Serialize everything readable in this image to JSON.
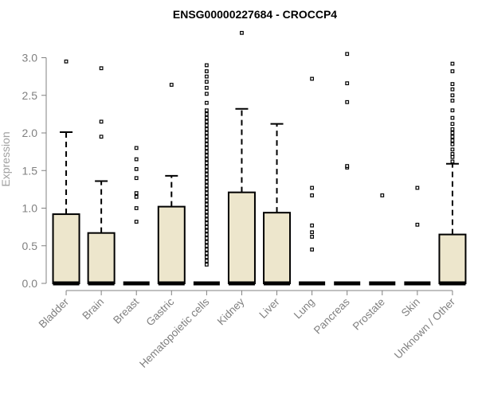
{
  "chart_data": {
    "type": "box",
    "title": "ENSG00000227684 - CROCCP4",
    "ylabel": "Expression",
    "xlabel": "",
    "ylim": [
      0,
      3.3
    ],
    "yticks": [
      "0.0",
      "0.5",
      "1.0",
      "1.5",
      "2.0",
      "2.5",
      "3.0"
    ],
    "grid": false,
    "colors": {
      "box_fill": "#ede6cc",
      "stroke": "#000000",
      "axis": "#808080"
    },
    "categories": [
      "Bladder",
      "Brain",
      "Breast",
      "Gastric",
      "Hematopoietic cells",
      "Kidney",
      "Liver",
      "Lung",
      "Pancreas",
      "Prostate",
      "Skin",
      "Unknown / Other"
    ],
    "boxes": [
      {
        "q1": 0,
        "median": 0,
        "q3": 0.92,
        "whisker_low": 0,
        "whisker_high": 2.01,
        "outliers": [
          2.95
        ]
      },
      {
        "q1": 0,
        "median": 0,
        "q3": 0.67,
        "whisker_low": 0,
        "whisker_high": 1.36,
        "outliers": [
          1.95,
          2.15,
          2.86
        ]
      },
      {
        "q1": 0,
        "median": 0,
        "q3": 0,
        "whisker_low": 0,
        "whisker_high": 0,
        "outliers": [
          0.82,
          1.0,
          1.15,
          1.2,
          1.4,
          1.52,
          1.65,
          1.8
        ]
      },
      {
        "q1": 0,
        "median": 0,
        "q3": 1.02,
        "whisker_low": 0,
        "whisker_high": 1.43,
        "outliers": [
          2.64
        ]
      },
      {
        "q1": 0,
        "median": 0,
        "q3": 0,
        "whisker_low": 0,
        "whisker_high": 0,
        "outliers": [
          0.25,
          0.3,
          0.35,
          0.4,
          0.45,
          0.5,
          0.55,
          0.6,
          0.65,
          0.7,
          0.75,
          0.8,
          0.85,
          0.9,
          0.95,
          1.0,
          1.05,
          1.1,
          1.15,
          1.2,
          1.25,
          1.3,
          1.35,
          1.4,
          1.45,
          1.5,
          1.55,
          1.6,
          1.65,
          1.7,
          1.75,
          1.8,
          1.85,
          1.9,
          1.95,
          2.0,
          2.05,
          2.1,
          2.15,
          2.2,
          2.25,
          2.3,
          2.4,
          2.52,
          2.6,
          2.68,
          2.75,
          2.82,
          2.9
        ]
      },
      {
        "q1": 0,
        "median": 0,
        "q3": 1.21,
        "whisker_low": 0,
        "whisker_high": 2.32,
        "outliers": [
          3.33
        ]
      },
      {
        "q1": 0,
        "median": 0,
        "q3": 0.94,
        "whisker_low": 0,
        "whisker_high": 2.12,
        "outliers": []
      },
      {
        "q1": 0,
        "median": 0,
        "q3": 0,
        "whisker_low": 0,
        "whisker_high": 0,
        "outliers": [
          0.45,
          0.62,
          0.68,
          0.77,
          1.17,
          1.27,
          2.72
        ]
      },
      {
        "q1": 0,
        "median": 0,
        "q3": 0,
        "whisker_low": 0,
        "whisker_high": 0,
        "outliers": [
          1.54,
          1.56,
          2.41,
          2.66,
          3.05
        ]
      },
      {
        "q1": 0,
        "median": 0,
        "q3": 0,
        "whisker_low": 0,
        "whisker_high": 0,
        "outliers": [
          1.17
        ]
      },
      {
        "q1": 0,
        "median": 0,
        "q3": 0,
        "whisker_low": 0,
        "whisker_high": 0,
        "outliers": [
          0.78,
          1.27
        ]
      },
      {
        "q1": 0,
        "median": 0,
        "q3": 0.65,
        "whisker_low": 0,
        "whisker_high": 1.59,
        "outliers": [
          1.62,
          1.68,
          1.72,
          1.78,
          1.85,
          1.9,
          1.95,
          2.0,
          2.05,
          2.12,
          2.2,
          2.3,
          2.43,
          2.5,
          2.58,
          2.65,
          2.82,
          2.92
        ]
      }
    ]
  }
}
